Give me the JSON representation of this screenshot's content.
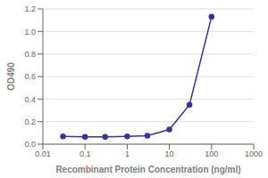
{
  "chart_data": {
    "type": "line",
    "x": [
      0.03,
      0.1,
      0.3,
      1,
      3,
      10,
      30,
      100
    ],
    "values": [
      0.07,
      0.065,
      0.065,
      0.07,
      0.075,
      0.13,
      0.35,
      1.13
    ],
    "xlabel": "Recombinant Protein Concentration (ng/ml)",
    "ylabel": "OD490",
    "log": "x",
    "xlim": [
      0.01,
      1000
    ],
    "ylim": [
      0.0,
      1.2
    ],
    "xticks": [
      0.01,
      0.1,
      1,
      10,
      100,
      1000
    ],
    "yticks": [
      {
        "value": 0,
        "label": "0.0"
      },
      0.2,
      0.4,
      0.6,
      0.8,
      {
        "value": 1,
        "label": "1.0"
      },
      1.2
    ],
    "grid": "y",
    "color": "#3333aa",
    "marker": "circle"
  }
}
